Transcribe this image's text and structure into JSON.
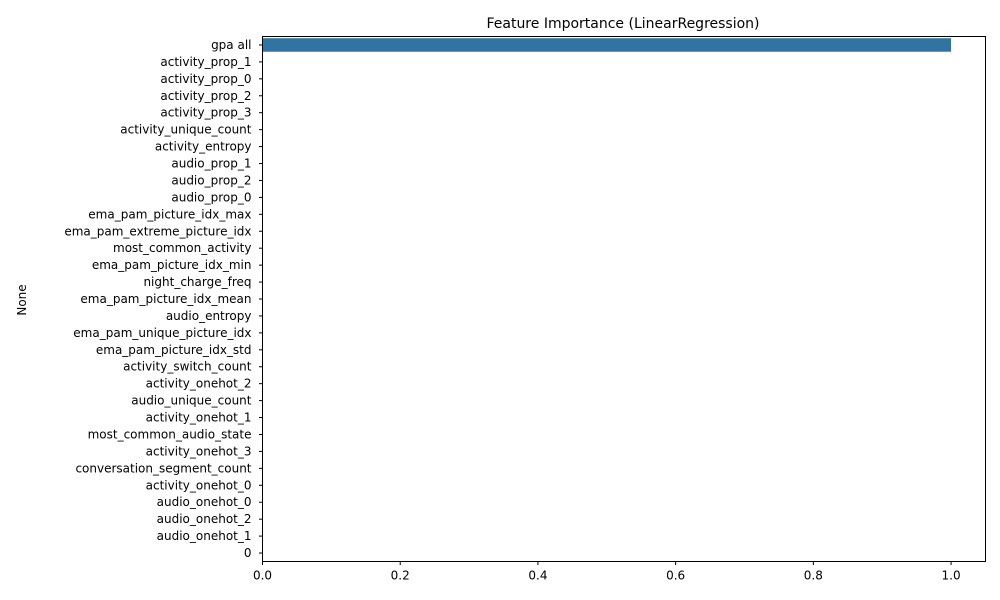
{
  "chart_data": {
    "type": "bar",
    "orientation": "horizontal",
    "title": "Feature Importance (LinearRegression)",
    "xlabel": "",
    "ylabel": "None",
    "xlim": [
      0,
      1.05
    ],
    "xticks": [
      0.0,
      0.2,
      0.4,
      0.6,
      0.8,
      1.0
    ],
    "xtick_labels": [
      "0.0",
      "0.2",
      "0.4",
      "0.6",
      "0.8",
      "1.0"
    ],
    "grid": false,
    "bar_color": "#3274a1",
    "categories": [
      "gpa all",
      "activity_prop_1",
      "activity_prop_0",
      "activity_prop_2",
      "activity_prop_3",
      "activity_unique_count",
      "activity_entropy",
      "audio_prop_1",
      "audio_prop_2",
      "audio_prop_0",
      "ema_pam_picture_idx_max",
      "ema_pam_extreme_picture_idx",
      "most_common_activity",
      "ema_pam_picture_idx_min",
      "night_charge_freq",
      "ema_pam_picture_idx_mean",
      "audio_entropy",
      "ema_pam_unique_picture_idx",
      "ema_pam_picture_idx_std",
      "activity_switch_count",
      "activity_onehot_2",
      "audio_unique_count",
      "activity_onehot_1",
      "most_common_audio_state",
      "activity_onehot_3",
      "conversation_segment_count",
      "activity_onehot_0",
      "audio_onehot_0",
      "audio_onehot_2",
      "audio_onehot_1",
      "0"
    ],
    "values": [
      1.0,
      0,
      0,
      0,
      0,
      0,
      0,
      0,
      0,
      0,
      0,
      0,
      0,
      0,
      0,
      0,
      0,
      0,
      0,
      0,
      0,
      0,
      0,
      0,
      0,
      0,
      0,
      0,
      0,
      0,
      0
    ]
  }
}
